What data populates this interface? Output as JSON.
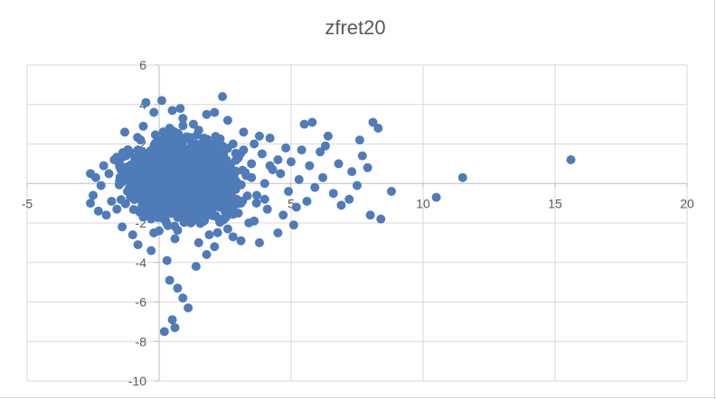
{
  "chart_data": {
    "type": "scatter",
    "title": "zfret20",
    "xlabel": "",
    "ylabel": "",
    "xlim": [
      -5,
      20
    ],
    "ylim": [
      -10,
      6
    ],
    "x_ticks": [
      "-5",
      "0",
      "5",
      "10",
      "15",
      "20"
    ],
    "y_ticks": [
      "6",
      "4",
      "2",
      "0",
      "-2",
      "-4",
      "-6",
      "-8",
      "-10"
    ],
    "grid": true,
    "legend": "none",
    "marker_color": "#4f7bb9",
    "series": [
      {
        "points": [
          [
            15.6,
            1.2
          ],
          [
            11.5,
            0.3
          ],
          [
            10.5,
            -0.7
          ],
          [
            8.8,
            -0.4
          ],
          [
            8.4,
            -1.8
          ],
          [
            8.0,
            -1.6
          ],
          [
            8.1,
            3.1
          ],
          [
            8.3,
            2.8
          ],
          [
            7.6,
            2.2
          ],
          [
            7.9,
            0.8
          ],
          [
            7.7,
            1.4
          ],
          [
            7.5,
            -0.1
          ],
          [
            7.3,
            0.6
          ],
          [
            7.2,
            -0.8
          ],
          [
            6.9,
            -1.1
          ],
          [
            6.8,
            1.0
          ],
          [
            6.6,
            -0.5
          ],
          [
            6.4,
            2.4
          ],
          [
            6.3,
            1.9
          ],
          [
            6.2,
            0.3
          ],
          [
            6.1,
            1.6
          ],
          [
            5.9,
            -0.2
          ],
          [
            5.8,
            3.1
          ],
          [
            5.7,
            0.9
          ],
          [
            5.6,
            -0.9
          ],
          [
            5.5,
            3.0
          ],
          [
            5.4,
            1.7
          ],
          [
            5.3,
            0.2
          ],
          [
            5.2,
            -1.2
          ],
          [
            5.1,
            -2.1
          ],
          [
            5.0,
            1.1
          ],
          [
            4.9,
            -0.4
          ],
          [
            4.8,
            1.8
          ],
          [
            4.7,
            -1.6
          ],
          [
            4.6,
            0.5
          ],
          [
            4.5,
            -2.5
          ],
          [
            4.3,
            0.7
          ],
          [
            4.2,
            2.3
          ],
          [
            4.1,
            -1.3
          ],
          [
            4.0,
            0.0
          ],
          [
            3.9,
            1.5
          ],
          [
            3.8,
            -3.0
          ],
          [
            3.7,
            -0.6
          ],
          [
            3.6,
            2.0
          ],
          [
            3.5,
            1.0
          ],
          [
            3.4,
            -2.0
          ],
          [
            3.3,
            0.4
          ],
          [
            3.2,
            2.6
          ],
          [
            3.1,
            -1.0
          ],
          [
            3.0,
            1.3
          ],
          [
            2.9,
            -0.3
          ],
          [
            2.8,
            -2.7
          ],
          [
            2.7,
            0.9
          ],
          [
            2.6,
            3.2
          ],
          [
            2.5,
            -1.4
          ],
          [
            2.4,
            4.4
          ],
          [
            2.3,
            0.1
          ],
          [
            2.2,
            2.1
          ],
          [
            2.1,
            -3.2
          ],
          [
            2.0,
            1.4
          ],
          [
            1.9,
            -0.8
          ],
          [
            1.8,
            3.5
          ],
          [
            1.7,
            -1.9
          ],
          [
            1.6,
            0.6
          ],
          [
            1.5,
            2.7
          ],
          [
            1.4,
            -4.2
          ],
          [
            1.3,
            -1.2
          ],
          [
            1.2,
            1.8
          ],
          [
            1.1,
            -6.3
          ],
          [
            1.0,
            -0.5
          ],
          [
            0.9,
            -5.8
          ],
          [
            0.8,
            3.8
          ],
          [
            0.7,
            -5.3
          ],
          [
            0.6,
            -7.3
          ],
          [
            0.5,
            -6.9
          ],
          [
            0.4,
            -4.9
          ],
          [
            0.3,
            2.5
          ],
          [
            0.2,
            -7.5
          ],
          [
            0.1,
            4.2
          ],
          [
            0.0,
            -2.4
          ],
          [
            -0.1,
            1.1
          ],
          [
            -0.2,
            3.6
          ],
          [
            -0.3,
            -3.4
          ],
          [
            -0.4,
            0.3
          ],
          [
            -0.5,
            4.1
          ],
          [
            -0.6,
            -1.7
          ],
          [
            -0.7,
            2.2
          ],
          [
            -0.8,
            -3.1
          ],
          [
            -0.9,
            0.8
          ],
          [
            -1.0,
            -2.6
          ],
          [
            -1.1,
            1.6
          ],
          [
            -1.2,
            -0.4
          ],
          [
            -1.3,
            2.6
          ],
          [
            -1.4,
            -2.2
          ],
          [
            -1.5,
            0.1
          ],
          [
            -1.6,
            -1.3
          ],
          [
            -1.7,
            1.2
          ],
          [
            -1.8,
            -0.9
          ],
          [
            -1.9,
            0.5
          ],
          [
            -2.0,
            -1.6
          ],
          [
            -2.1,
            0.9
          ],
          [
            -2.2,
            -0.1
          ],
          [
            -2.3,
            -1.4
          ],
          [
            -2.4,
            0.3
          ],
          [
            -2.6,
            0.5
          ],
          [
            -2.6,
            -1.0
          ],
          [
            -2.5,
            -0.6
          ],
          [
            1.0,
            1.0
          ],
          [
            1.5,
            0.0
          ],
          [
            0.5,
            -1.0
          ],
          [
            2.0,
            -0.5
          ],
          [
            1.2,
            -2.0
          ],
          [
            0.8,
            0.5
          ],
          [
            -0.5,
            -0.5
          ],
          [
            0.2,
            1.5
          ],
          [
            2.5,
            1.2
          ],
          [
            3.0,
            -1.5
          ],
          [
            1.7,
            2.3
          ],
          [
            0.6,
            -2.8
          ],
          [
            -1.0,
            0.2
          ],
          [
            1.3,
            3.0
          ],
          [
            2.2,
            -1.1
          ],
          [
            0.4,
            2.8
          ],
          [
            -0.3,
            -1.8
          ],
          [
            3.5,
            0.3
          ],
          [
            4.5,
            1.2
          ],
          [
            4.0,
            -0.8
          ],
          [
            2.8,
            2.0
          ],
          [
            1.8,
            -3.6
          ],
          [
            0.9,
            3.3
          ],
          [
            -0.8,
            1.7
          ],
          [
            1.1,
            -1.5
          ],
          [
            2.3,
            0.6
          ],
          [
            3.2,
            1.7
          ],
          [
            0.3,
            -3.9
          ],
          [
            -1.5,
            1.0
          ],
          [
            1.6,
            1.6
          ],
          [
            2.6,
            -2.3
          ],
          [
            0.7,
            1.0
          ],
          [
            3.8,
            2.4
          ],
          [
            4.2,
            0.9
          ],
          [
            2.1,
            3.6
          ],
          [
            1.4,
            -0.2
          ],
          [
            0.0,
            0.7
          ],
          [
            -0.6,
            2.9
          ],
          [
            1.9,
            -2.6
          ],
          [
            2.7,
            0.1
          ],
          [
            3.6,
            -1.9
          ],
          [
            0.5,
            3.7
          ],
          [
            1.2,
            0.4
          ],
          [
            -0.2,
            -2.5
          ],
          [
            2.4,
            1.9
          ],
          [
            3.1,
            -2.9
          ],
          [
            1.5,
            -3.0
          ],
          [
            0.8,
            -1.4
          ]
        ]
      }
    ]
  }
}
